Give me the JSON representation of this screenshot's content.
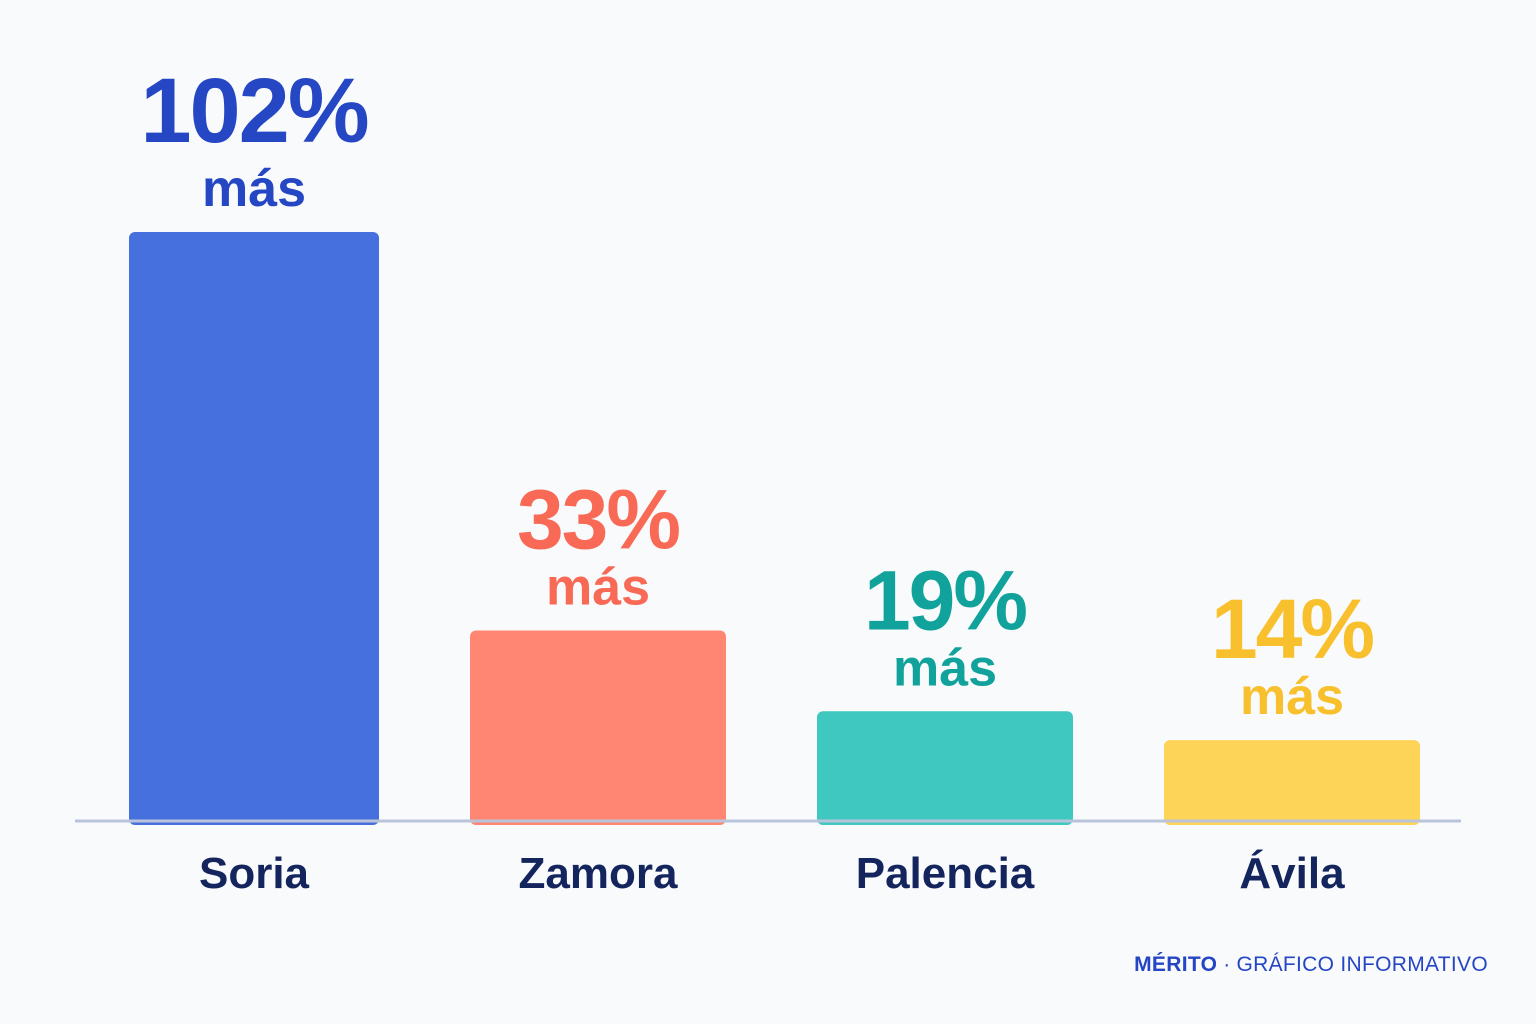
{
  "chart_data": {
    "type": "bar",
    "categories": [
      "Soria",
      "Zamora",
      "Palencia",
      "Ávila"
    ],
    "values": [
      102,
      33,
      19,
      14
    ],
    "value_labels": [
      "102%",
      "33%",
      "19%",
      "14%"
    ],
    "value_suffix": "más",
    "colors": [
      "#4670de",
      "#ff8672",
      "#3ec8c0",
      "#fed458"
    ],
    "label_colors": [
      "#2547c4",
      "#f86a55",
      "#11a39b",
      "#f8c02c"
    ],
    "grid": false,
    "legend": "none",
    "ylim": [
      0,
      102
    ]
  },
  "footer": {
    "brand": "MÉRITO",
    "separator": "·",
    "tag": "GRÁFICO INFORMATIVO"
  }
}
